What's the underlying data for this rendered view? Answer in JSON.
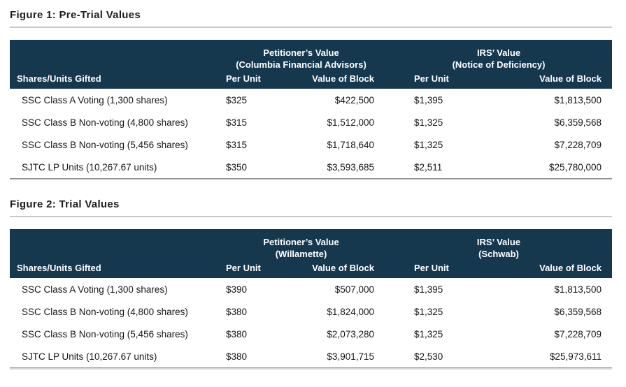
{
  "colors": {
    "header_bg": "#16384f",
    "header_text": "#ffffff",
    "title_text": "#1d1d1b",
    "body_text": "#161616",
    "title_rule": "#c7c8ca",
    "bottom_rule_dark": "#8b8d8f",
    "bottom_rule_light": "#d5d6d8"
  },
  "figures": [
    {
      "title": "Figure 1: Pre-Trial Values",
      "groups": [
        {
          "line1": "Petitioner’s Value",
          "line2": "(Columbia Financial Advisors)"
        },
        {
          "line1": "IRS’ Value",
          "line2": "(Notice of Deficiency)"
        }
      ],
      "col_headers": [
        "Shares/Units Gifted",
        "Per Unit",
        "Value of Block",
        "Per Unit",
        "Value of Block"
      ],
      "rows": [
        {
          "label": "SSC Class A Voting (1,300 shares)",
          "pet_unit": "$325",
          "pet_block": "$422,500",
          "irs_unit": "$1,395",
          "irs_block": "$1,813,500"
        },
        {
          "label": "SSC Class B Non-voting (4,800 shares)",
          "pet_unit": "$315",
          "pet_block": "$1,512,000",
          "irs_unit": "$1,325",
          "irs_block": "$6,359,568"
        },
        {
          "label": "SSC Class B Non-voting (5,456 shares)",
          "pet_unit": "$315",
          "pet_block": "$1,718,640",
          "irs_unit": "$1,325",
          "irs_block": "$7,228,709"
        },
        {
          "label": "SJTC LP Units (10,267.67 units)",
          "pet_unit": "$350",
          "pet_block": "$3,593,685",
          "irs_unit": "$2,511",
          "irs_block": "$25,780,000"
        }
      ]
    },
    {
      "title": "Figure 2: Trial Values",
      "groups": [
        {
          "line1": "Petitioner’s Value",
          "line2": "(Willamette)"
        },
        {
          "line1": "IRS’ Value",
          "line2": "(Schwab)"
        }
      ],
      "col_headers": [
        "Shares/Units Gifted",
        "Per Unit",
        "Value of Block",
        "Per Unit",
        "Value of Block"
      ],
      "rows": [
        {
          "label": "SSC Class A Voting (1,300 shares)",
          "pet_unit": "$390",
          "pet_block": "$507,000",
          "irs_unit": "$1,395",
          "irs_block": "$1,813,500"
        },
        {
          "label": "SSC Class B Non-voting (4,800 shares)",
          "pet_unit": "$380",
          "pet_block": "$1,824,000",
          "irs_unit": "$1,325",
          "irs_block": "$6,359,568"
        },
        {
          "label": "SSC Class B Non-voting (5,456 shares)",
          "pet_unit": "$380",
          "pet_block": "$2,073,280",
          "irs_unit": "$1,325",
          "irs_block": "$7,228,709"
        },
        {
          "label": "SJTC LP Units (10,267.67 units)",
          "pet_unit": "$380",
          "pet_block": "$3,901,715",
          "irs_unit": "$2,530",
          "irs_block": "$25,973,611"
        }
      ]
    }
  ]
}
